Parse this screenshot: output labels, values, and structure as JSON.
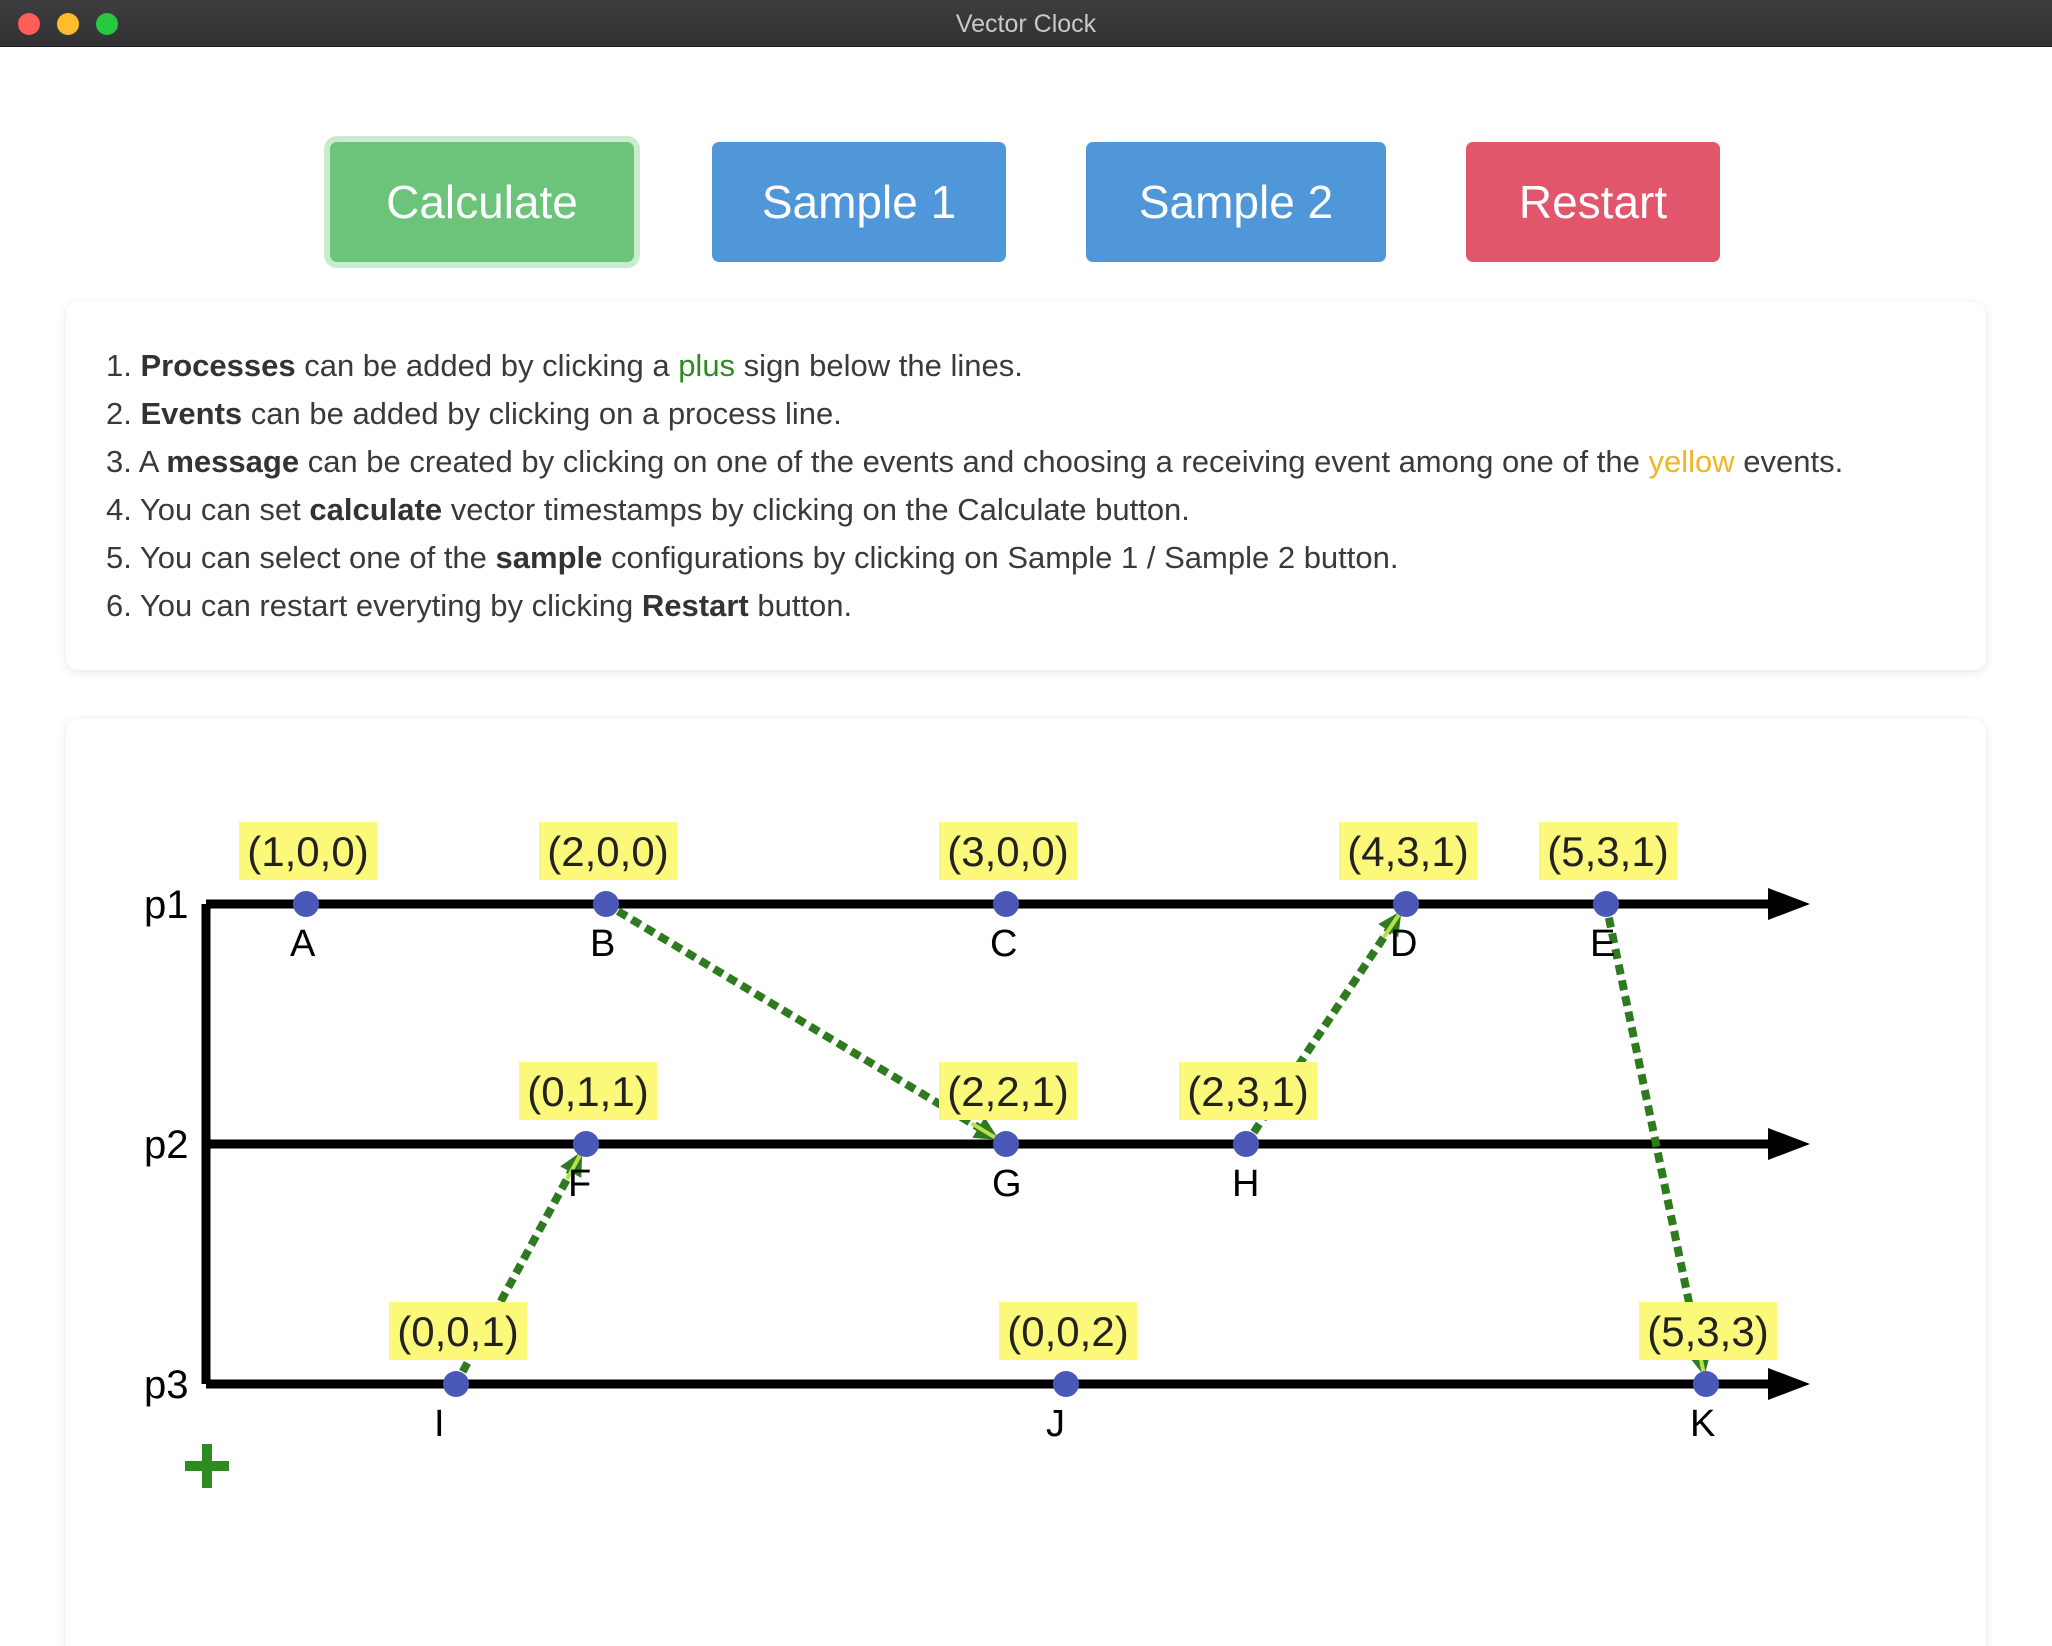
{
  "window": {
    "title": "Vector Clock"
  },
  "toolbar": {
    "calculate_label": "Calculate",
    "sample1_label": "Sample 1",
    "sample2_label": "Sample 2",
    "restart_label": "Restart"
  },
  "instructions": [
    {
      "num": "1.",
      "parts": [
        {
          "t": "Processes",
          "s": "bold"
        },
        {
          "t": " can be added by clicking a "
        },
        {
          "t": "plus",
          "s": "green"
        },
        {
          "t": " sign below the lines."
        }
      ]
    },
    {
      "num": "2.",
      "parts": [
        {
          "t": "Events",
          "s": "bold"
        },
        {
          "t": " can be added by clicking on a process line."
        }
      ]
    },
    {
      "num": "3.",
      "parts": [
        {
          "t": "A "
        },
        {
          "t": "message",
          "s": "bold"
        },
        {
          "t": " can be created by clicking on one of the events and choosing a receiving event among one of the "
        },
        {
          "t": "yellow",
          "s": "yellow"
        },
        {
          "t": " events."
        }
      ]
    },
    {
      "num": "4.",
      "parts": [
        {
          "t": "You can set "
        },
        {
          "t": "calculate",
          "s": "bold"
        },
        {
          "t": " vector timestamps by clicking on the Calculate button."
        }
      ]
    },
    {
      "num": "5.",
      "parts": [
        {
          "t": "You can select one of the "
        },
        {
          "t": "sample",
          "s": "bold"
        },
        {
          "t": " configurations by clicking on Sample 1 / Sample 2 button."
        }
      ]
    },
    {
      "num": "6.",
      "parts": [
        {
          "t": "You can restart everyting by clicking "
        },
        {
          "t": "Restart",
          "s": "bold"
        },
        {
          "t": " button."
        }
      ]
    }
  ],
  "colors": {
    "calculate": "#6cc47b",
    "sample": "#4f97d9",
    "restart": "#e2566b",
    "event_dot": "#4a58b8",
    "timestamp_bg": "#fbf87a",
    "message_arrow": "#2e7a1e",
    "plus": "#2e8b22"
  },
  "add_process_icon": "plus-icon",
  "processes": [
    {
      "name": "p1",
      "events": [
        {
          "label": "A",
          "vc": "(1,0,0)"
        },
        {
          "label": "B",
          "vc": "(2,0,0)"
        },
        {
          "label": "C",
          "vc": "(3,0,0)"
        },
        {
          "label": "D",
          "vc": "(4,3,1)"
        },
        {
          "label": "E",
          "vc": "(5,3,1)"
        }
      ]
    },
    {
      "name": "p2",
      "events": [
        {
          "label": "F",
          "vc": "(0,1,1)"
        },
        {
          "label": "G",
          "vc": "(2,2,1)"
        },
        {
          "label": "H",
          "vc": "(2,3,1)"
        }
      ]
    },
    {
      "name": "p3",
      "events": [
        {
          "label": "I",
          "vc": "(0,0,1)"
        },
        {
          "label": "J",
          "vc": "(0,0,2)"
        },
        {
          "label": "K",
          "vc": "(5,3,3)"
        }
      ]
    }
  ],
  "messages": [
    {
      "from": "B",
      "to": "G"
    },
    {
      "from": "I",
      "to": "F"
    },
    {
      "from": "H",
      "to": "D"
    },
    {
      "from": "E",
      "to": "K"
    }
  ]
}
